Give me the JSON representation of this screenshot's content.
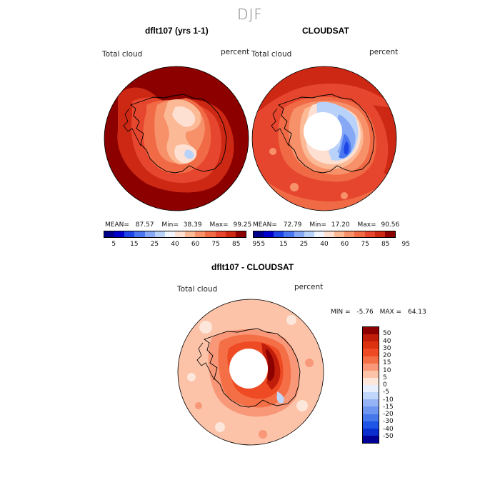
{
  "season": "DJF",
  "panels": {
    "model": {
      "title": "dflt107 (yrs 1-1)",
      "var_label": "Total cloud",
      "units": "percent",
      "stats": {
        "mean_label": "MEAN=",
        "mean": "87.57",
        "min_label": "Min=",
        "min": "38.39",
        "max_label": "Max=",
        "max": "99.25"
      }
    },
    "obs": {
      "title": "CLOUDSAT",
      "var_label": "Total cloud",
      "units": "percent",
      "stats": {
        "mean_label": "MEAN=",
        "mean": "72.79",
        "min_label": "Min=",
        "min": "17.20",
        "max_label": "Max=",
        "max": "90.56"
      }
    },
    "diff": {
      "title": "dflt107 - CLOUDSAT",
      "var_label": "Total cloud",
      "units": "percent",
      "stats": {
        "min_label": "MIN =",
        "min": "-5.76",
        "max_label": "MAX =",
        "max": "64.13"
      }
    }
  },
  "colorbar_abs": {
    "colors": [
      "#00008b",
      "#0000cd",
      "#1e46e6",
      "#4b78f0",
      "#87a9f5",
      "#b9d2fa",
      "#f0f5ff",
      "#fde0d2",
      "#fcb996",
      "#f79169",
      "#f06a46",
      "#e6462d",
      "#cd2814",
      "#8c0000"
    ],
    "tick_labels": [
      "5",
      "15",
      "25",
      "40",
      "60",
      "75",
      "85",
      "95"
    ]
  },
  "colorbar_diff": {
    "colors": [
      "#8c0000",
      "#c01e0a",
      "#dc320f",
      "#ee4a23",
      "#f46e46",
      "#f89878",
      "#fcc3a8",
      "#fde6da",
      "#e8f0ff",
      "#c0d6fa",
      "#96b4f5",
      "#6e96f0",
      "#4678eb",
      "#1e55e6",
      "#0a2dcd",
      "#000096"
    ],
    "tick_labels": [
      "50",
      "40",
      "30",
      "20",
      "15",
      "10",
      "5",
      "0",
      "-5",
      "-10",
      "-15",
      "-20",
      "-30",
      "-40",
      "-50"
    ]
  }
}
